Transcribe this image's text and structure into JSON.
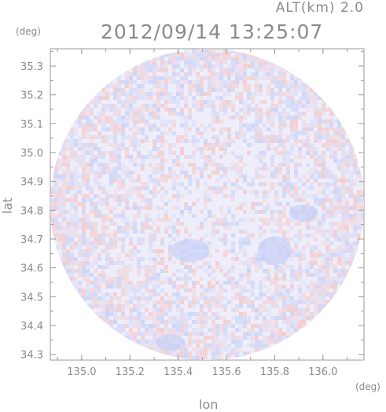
{
  "header": {
    "altitude_label": "ALT(km) 2.0",
    "datetime": "2012/09/14 13:25:07"
  },
  "chart_data": {
    "type": "heatmap",
    "title": "2012/09/14 13:25:07",
    "subtitle": "ALT(km) 2.0",
    "xlabel": "lon",
    "ylabel": "lat",
    "x_unit": "(deg)",
    "y_unit": "(deg)",
    "xlim": [
      134.87,
      136.17
    ],
    "ylim": [
      34.28,
      35.36
    ],
    "x_ticks": [
      135.0,
      135.2,
      135.4,
      135.6,
      135.8,
      136.0
    ],
    "x_tick_labels": [
      "135.0",
      "135.2",
      "135.4",
      "135.6",
      "135.8",
      "136.0"
    ],
    "y_ticks": [
      34.3,
      34.4,
      34.5,
      34.6,
      34.7,
      34.8,
      34.9,
      35.0,
      35.1,
      35.2,
      35.3
    ],
    "y_tick_labels": [
      "34.3",
      "34.4",
      "34.5",
      "34.6",
      "34.7",
      "34.8",
      "34.9",
      "35.0",
      "35.1",
      "35.2",
      "35.3"
    ],
    "data_region": {
      "shape": "circle",
      "center": [
        135.52,
        34.82
      ],
      "radius_lon": 0.65,
      "radius_lat": 0.54
    },
    "colors": {
      "positive": "#f4c8c8",
      "negative": "#c8d0f6",
      "near_zero": "#eeeefb",
      "background": "#ffffff",
      "axis": "#999999"
    },
    "grid": false,
    "legend": "none"
  }
}
